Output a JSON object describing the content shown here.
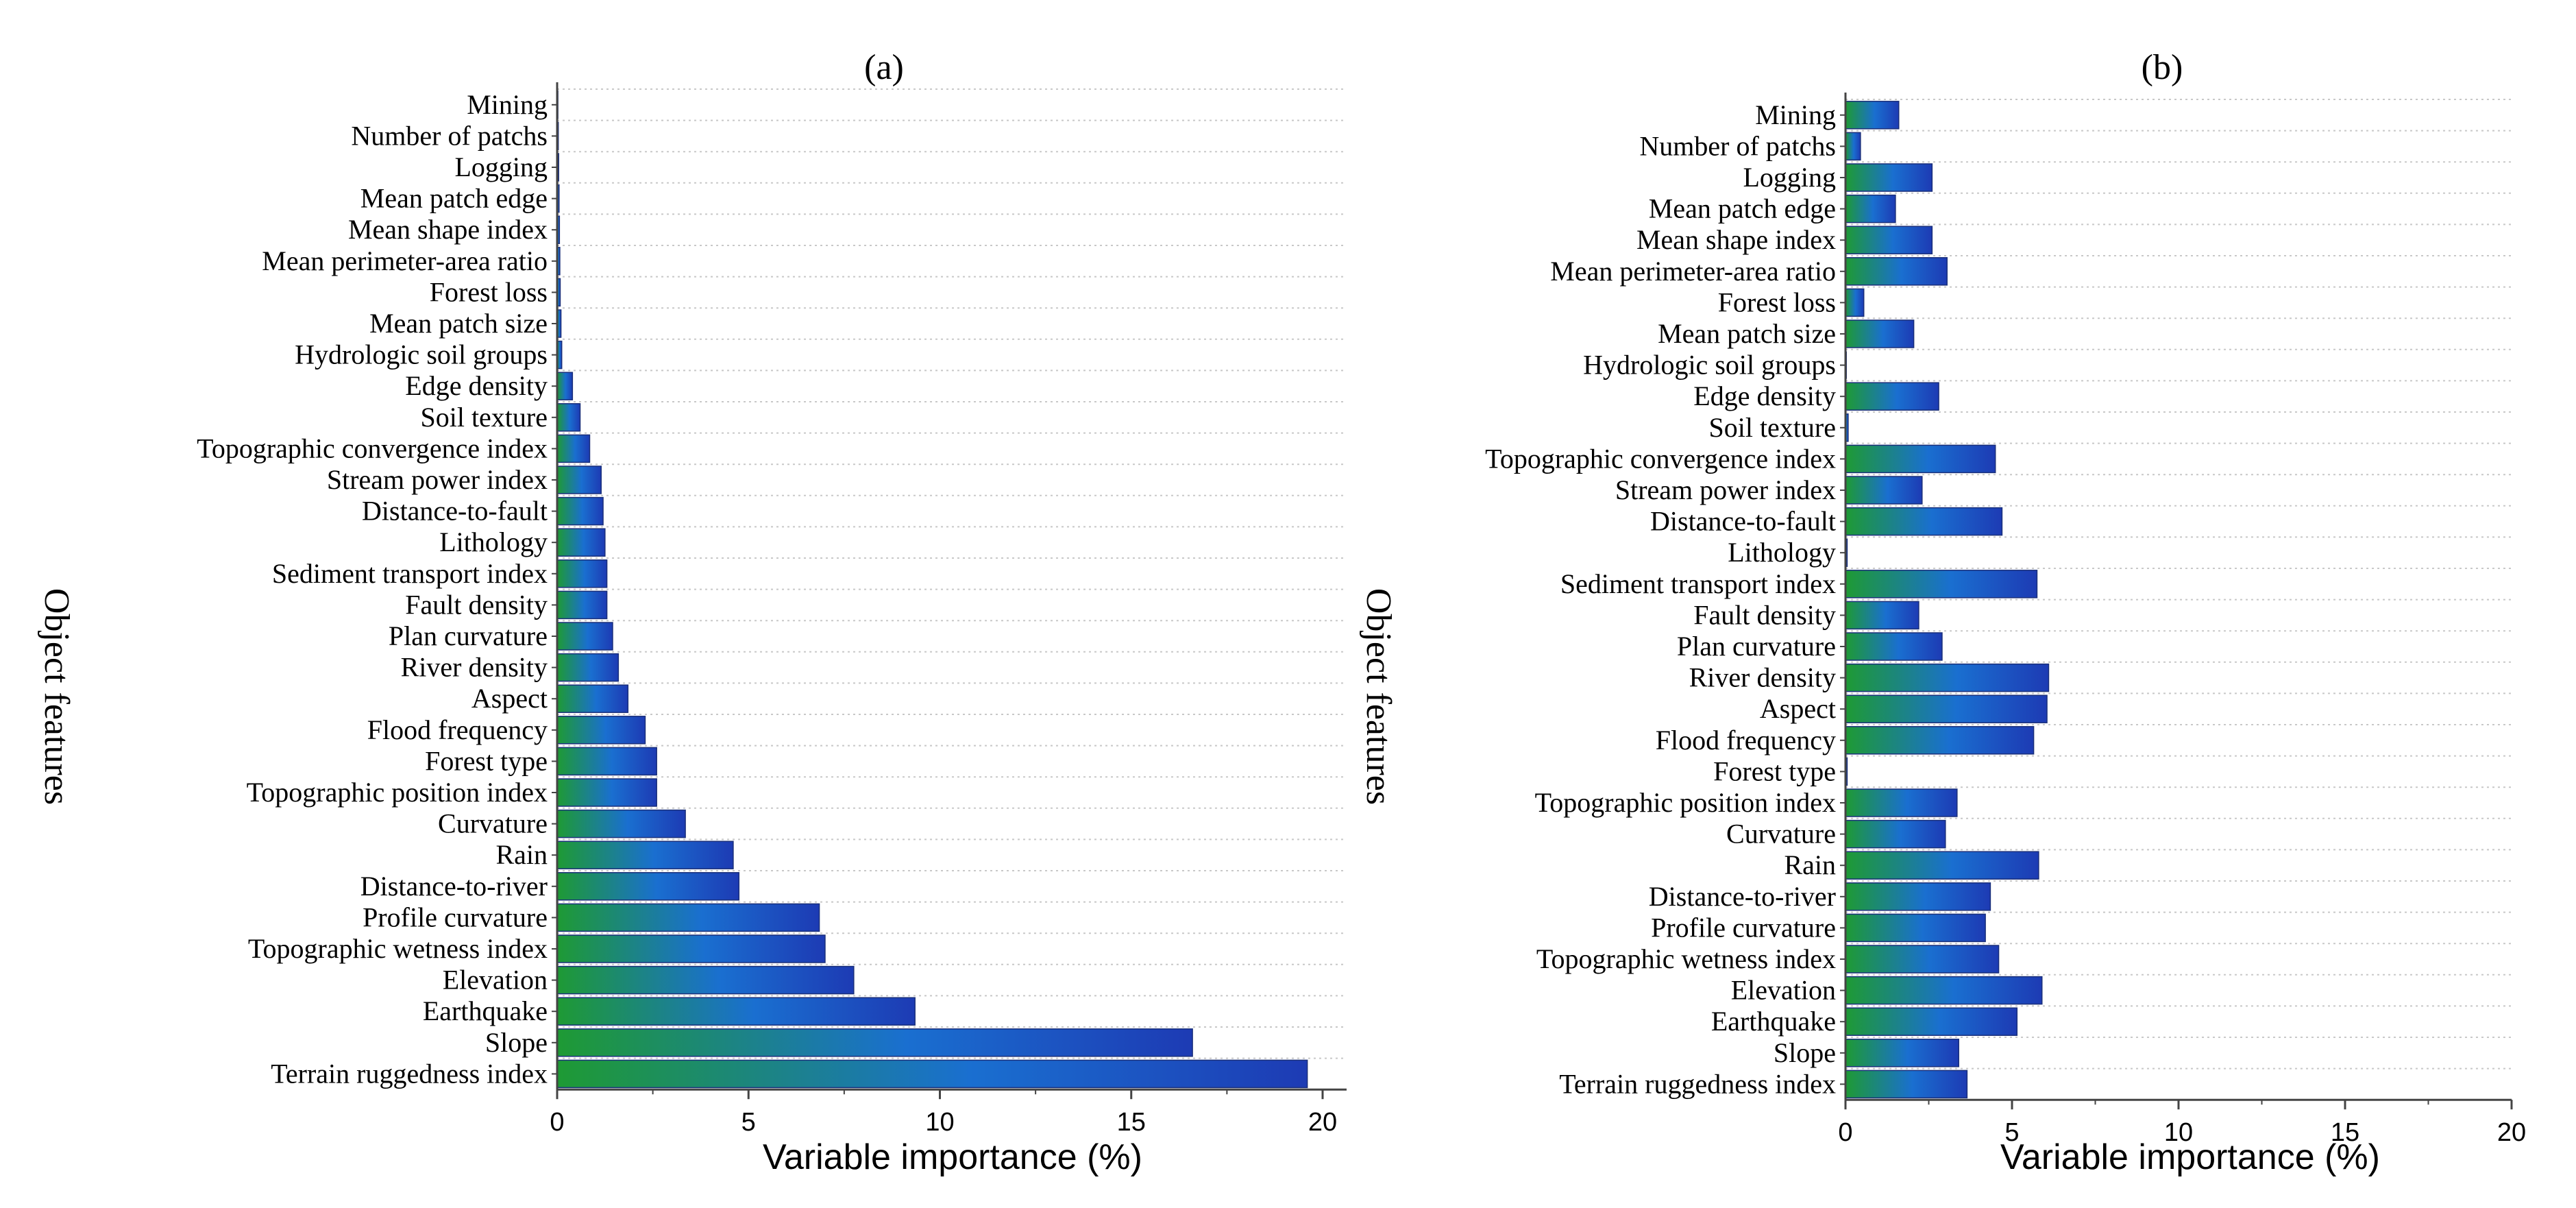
{
  "figure": {
    "y_axis_label": "Object features",
    "x_axis_label": "Variable importance (%)"
  },
  "colors": {
    "bar_gradient_start": "#1e9a34",
    "bar_gradient_mid": "#1a6fd0",
    "bar_gradient_end": "#1d3bb4",
    "bar_edge": "#1a2f7a",
    "gridline": "#c8c8c8",
    "axis": "#444444"
  },
  "chart_data": [
    {
      "type": "bar",
      "orientation": "horizontal",
      "title": "(a)",
      "xlabel": "Variable importance (%)",
      "ylabel": "Object features",
      "xlim": [
        0,
        21
      ],
      "xticks": [
        0,
        5,
        10,
        15,
        20
      ],
      "categories": [
        "Mining",
        "Number of patchs",
        "Logging",
        "Mean patch edge",
        "Mean shape index",
        "Mean perimeter-area ratio",
        "Forest loss",
        "Mean patch size",
        "Hydrologic soil groups",
        "Edge density",
        "Soil texture",
        "Topographic convergence index",
        "Stream power index",
        "Distance-to-fault",
        "Lithology",
        "Sediment transport index",
        "Fault density",
        "Plan curvature",
        "River density",
        "Aspect",
        "Flood frequency",
        "Forest type",
        "Topographic position index",
        "Curvature",
        "Rain",
        "Distance-to-river",
        "Profile curvature",
        "Topographic wetness index",
        "Elevation",
        "Earthquake",
        "Slope",
        "Terrain ruggedness index"
      ],
      "values": [
        0.02,
        0.03,
        0.04,
        0.05,
        0.06,
        0.07,
        0.08,
        0.1,
        0.12,
        0.4,
        0.6,
        0.85,
        1.15,
        1.2,
        1.25,
        1.3,
        1.3,
        1.45,
        1.6,
        1.85,
        2.3,
        2.6,
        2.6,
        3.35,
        4.6,
        4.75,
        6.85,
        7.0,
        7.75,
        9.35,
        16.6,
        19.6
      ],
      "grid": "horizontal dotted"
    },
    {
      "type": "bar",
      "orientation": "horizontal",
      "title": "(b)",
      "xlabel": "Variable importance (%)",
      "ylabel": "Object features",
      "xlim": [
        0,
        20
      ],
      "xticks": [
        0,
        5,
        10,
        15,
        20
      ],
      "categories": [
        "Mining",
        "Number of patchs",
        "Logging",
        "Mean patch edge",
        "Mean shape index",
        "Mean perimeter-area ratio",
        "Forest loss",
        "Mean patch size",
        "Hydrologic soil groups",
        "Edge density",
        "Soil texture",
        "Topographic convergence index",
        "Stream power index",
        "Distance-to-fault",
        "Lithology",
        "Sediment transport index",
        "Fault density",
        "Plan curvature",
        "River density",
        "Aspect",
        "Flood frequency",
        "Forest type",
        "Topographic position index",
        "Curvature",
        "Rain",
        "Distance-to-river",
        "Profile curvature",
        "Topographic wetness index",
        "Elevation",
        "Earthquake",
        "Slope",
        "Terrain ruggedness index"
      ],
      "values": [
        1.6,
        0.45,
        2.6,
        1.5,
        2.6,
        3.05,
        0.55,
        2.05,
        0.0,
        2.8,
        0.08,
        4.5,
        2.3,
        4.7,
        0.05,
        5.75,
        2.2,
        2.9,
        6.1,
        6.05,
        5.65,
        0.05,
        3.35,
        3.0,
        5.8,
        4.35,
        4.2,
        4.6,
        5.9,
        5.15,
        3.4,
        3.65
      ],
      "grid": "horizontal dotted"
    }
  ]
}
